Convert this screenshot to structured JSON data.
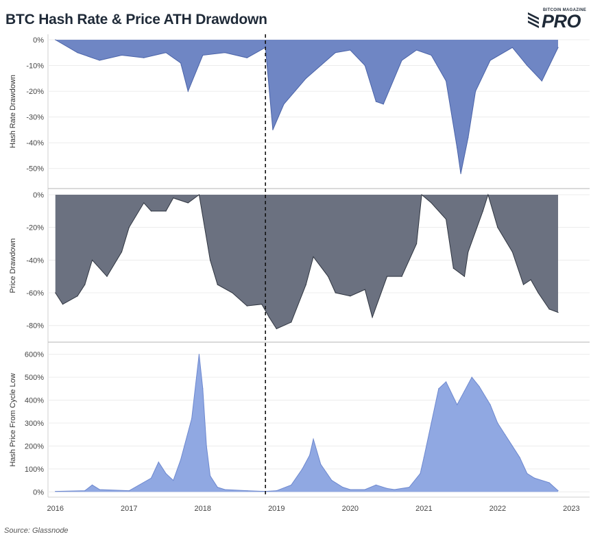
{
  "title": "BTC Hash Rate & Price ATH Drawdown",
  "source": "Source: Glassnode",
  "logo": {
    "small_text": "BITCOIN MAGAZINE",
    "big_text": "PRO"
  },
  "colors": {
    "hash_rate": "#6f86c4",
    "price": "#6b7180",
    "hash_price": "#8aa3e0",
    "cycle_line": "#111111"
  },
  "chart_data": [
    {
      "type": "area",
      "ylabel": "Hash Rate Drawdown",
      "ylim": [
        -0.53,
        0.0
      ],
      "yticks": [
        0,
        -0.1,
        -0.2,
        -0.3,
        -0.4,
        -0.5
      ],
      "ytick_labels": [
        "0%",
        "-10%",
        "-20%",
        "-30%",
        "-40%",
        "-50%"
      ],
      "x": [
        2016.0,
        2016.3,
        2016.6,
        2016.9,
        2017.2,
        2017.5,
        2017.7,
        2017.8,
        2018.0,
        2018.3,
        2018.6,
        2018.85,
        2018.95,
        2019.1,
        2019.4,
        2019.8,
        2020.0,
        2020.2,
        2020.35,
        2020.45,
        2020.7,
        2020.9,
        2021.1,
        2021.3,
        2021.45,
        2021.5,
        2021.6,
        2021.7,
        2021.9,
        2022.2,
        2022.4,
        2022.6,
        2022.82
      ],
      "values": [
        0,
        -0.05,
        -0.08,
        -0.06,
        -0.07,
        -0.05,
        -0.09,
        -0.2,
        -0.06,
        -0.05,
        -0.07,
        -0.03,
        -0.35,
        -0.25,
        -0.15,
        -0.05,
        -0.04,
        -0.1,
        -0.24,
        -0.25,
        -0.08,
        -0.04,
        -0.06,
        -0.16,
        -0.42,
        -0.52,
        -0.38,
        -0.2,
        -0.08,
        -0.03,
        -0.1,
        -0.16,
        -0.03
      ]
    },
    {
      "type": "area",
      "ylabel": "Price Drawdown",
      "ylim": [
        -0.86,
        0.0
      ],
      "yticks": [
        0,
        -0.2,
        -0.4,
        -0.6,
        -0.8
      ],
      "ytick_labels": [
        "0%",
        "-20%",
        "-40%",
        "-60%",
        "-80%"
      ],
      "x": [
        2016.0,
        2016.1,
        2016.3,
        2016.4,
        2016.5,
        2016.7,
        2016.9,
        2017.0,
        2017.2,
        2017.3,
        2017.5,
        2017.6,
        2017.8,
        2017.95,
        2018.1,
        2018.2,
        2018.4,
        2018.6,
        2018.8,
        2018.9,
        2019.0,
        2019.2,
        2019.4,
        2019.5,
        2019.7,
        2019.8,
        2020.0,
        2020.2,
        2020.3,
        2020.5,
        2020.7,
        2020.9,
        2020.97,
        2021.1,
        2021.3,
        2021.4,
        2021.55,
        2021.6,
        2021.8,
        2021.87,
        2022.0,
        2022.2,
        2022.35,
        2022.45,
        2022.55,
        2022.7,
        2022.82
      ],
      "values": [
        -0.6,
        -0.67,
        -0.62,
        -0.55,
        -0.4,
        -0.5,
        -0.35,
        -0.2,
        -0.05,
        -0.1,
        -0.1,
        -0.02,
        -0.05,
        0,
        -0.4,
        -0.55,
        -0.6,
        -0.68,
        -0.67,
        -0.75,
        -0.82,
        -0.78,
        -0.55,
        -0.38,
        -0.5,
        -0.6,
        -0.62,
        -0.58,
        -0.75,
        -0.5,
        -0.5,
        -0.3,
        0,
        -0.05,
        -0.15,
        -0.45,
        -0.5,
        -0.35,
        -0.1,
        0,
        -0.2,
        -0.35,
        -0.55,
        -0.52,
        -0.6,
        -0.7,
        -0.72
      ]
    },
    {
      "type": "area",
      "ylabel": "Hash Price From Cycle Low",
      "ylim": [
        -0.05,
        6.2
      ],
      "yticks": [
        0,
        1,
        2,
        3,
        4,
        5,
        6
      ],
      "ytick_labels": [
        "0%",
        "100%",
        "200%",
        "300%",
        "400%",
        "500%",
        "600%"
      ],
      "x": [
        2016.0,
        2016.4,
        2016.5,
        2016.6,
        2017.0,
        2017.3,
        2017.4,
        2017.5,
        2017.6,
        2017.7,
        2017.75,
        2017.85,
        2017.95,
        2018.0,
        2018.05,
        2018.1,
        2018.2,
        2018.3,
        2018.6,
        2018.85,
        2019.0,
        2019.2,
        2019.35,
        2019.45,
        2019.5,
        2019.6,
        2019.75,
        2019.9,
        2020.0,
        2020.2,
        2020.35,
        2020.5,
        2020.6,
        2020.8,
        2020.95,
        2021.0,
        2021.1,
        2021.2,
        2021.3,
        2021.45,
        2021.55,
        2021.65,
        2021.75,
        2021.9,
        2022.0,
        2022.1,
        2022.2,
        2022.3,
        2022.4,
        2022.5,
        2022.7,
        2022.82
      ],
      "values": [
        0.02,
        0.05,
        0.3,
        0.1,
        0.05,
        0.6,
        1.3,
        0.8,
        0.5,
        1.4,
        2.0,
        3.2,
        6.0,
        4.5,
        2.0,
        0.7,
        0.2,
        0.1,
        0.05,
        0.02,
        0.05,
        0.3,
        1.0,
        1.6,
        2.3,
        1.2,
        0.5,
        0.2,
        0.1,
        0.1,
        0.3,
        0.15,
        0.1,
        0.2,
        0.8,
        1.5,
        3.0,
        4.5,
        4.8,
        3.8,
        4.4,
        5.0,
        4.6,
        3.8,
        3.0,
        2.5,
        2.0,
        1.5,
        0.8,
        0.6,
        0.4,
        0.05
      ]
    }
  ],
  "x_axis": {
    "xlim": [
      2015.9,
      2022.95
    ],
    "ticks": [
      2016,
      2017,
      2018,
      2019,
      2020,
      2021,
      2022,
      2023
    ],
    "tick_labels": [
      "2016",
      "2017",
      "2018",
      "2019",
      "2020",
      "2021",
      "2022",
      "2023"
    ]
  },
  "cycle_line_x": 2018.85
}
